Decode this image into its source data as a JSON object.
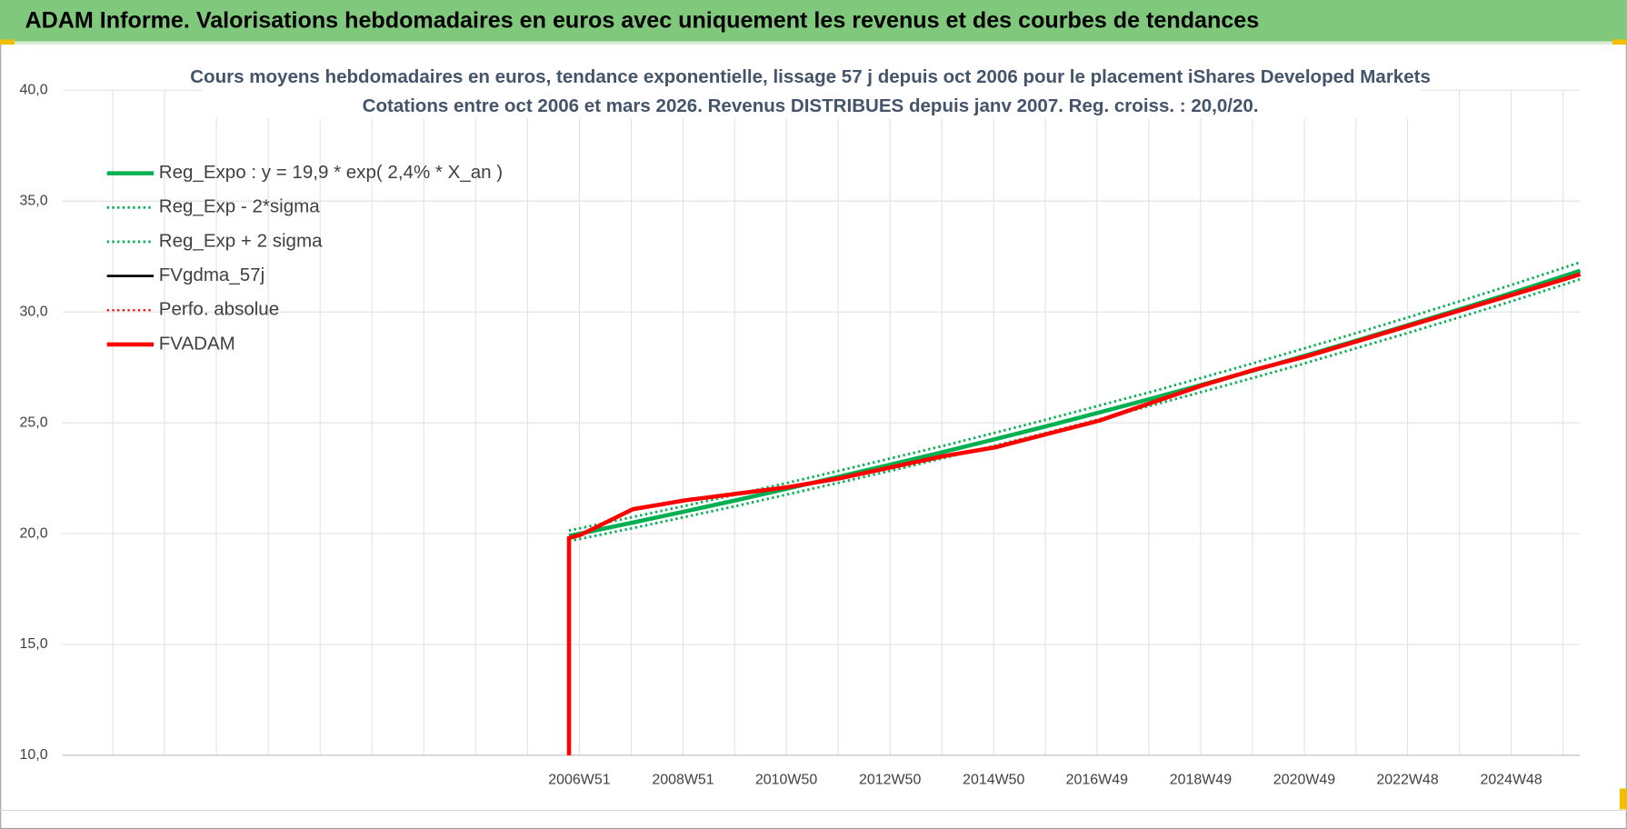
{
  "header": {
    "title": "ADAM Informe. Valorisations hebdomadaires en euros avec uniquement les revenus et des courbes de tendances"
  },
  "chart_data": {
    "type": "line",
    "title": "Cours moyens hebdomadaires en euros, tendance exponentielle, lissage 57 j depuis oct 2006 pour le placement iShares Developed Markets",
    "subtitle": "Cotations entre oct 2006 et mars 2026. Revenus DISTRIBUES depuis janv 2007. Reg. croiss. : 20,0/20.",
    "x": [
      2006.77,
      2006.77,
      2007,
      2008,
      2009,
      2010,
      2011,
      2012,
      2013,
      2014,
      2015,
      2016,
      2017,
      2018,
      2019,
      2020,
      2021,
      2022,
      2023,
      2024,
      2025,
      2026,
      2026.27
    ],
    "xlim": [
      1997,
      2026.27
    ],
    "xticks": [
      {
        "value": 2006.97,
        "label": "2006W51"
      },
      {
        "value": 2008.97,
        "label": "2008W51"
      },
      {
        "value": 2010.96,
        "label": "2010W50"
      },
      {
        "value": 2012.96,
        "label": "2012W50"
      },
      {
        "value": 2014.96,
        "label": "2014W50"
      },
      {
        "value": 2016.95,
        "label": "2016W49"
      },
      {
        "value": 2018.95,
        "label": "2018W49"
      },
      {
        "value": 2020.95,
        "label": "2020W49"
      },
      {
        "value": 2022.94,
        "label": "2022W48"
      },
      {
        "value": 2024.94,
        "label": "2024W48"
      }
    ],
    "ylim": [
      10,
      40
    ],
    "yticks": [
      {
        "value": 10,
        "label": "10,0"
      },
      {
        "value": 15,
        "label": "15,0"
      },
      {
        "value": 20,
        "label": "20,0"
      },
      {
        "value": 25,
        "label": "25,0"
      },
      {
        "value": 30,
        "label": "30,0"
      },
      {
        "value": 35,
        "label": "35,0"
      },
      {
        "value": 40,
        "label": "40,0"
      }
    ],
    "grid": true,
    "legend": "top-left",
    "series": [
      {
        "name": "Reg_Expo : y = 19,9 * exp( 2,4% *  X_an )",
        "color": "#00b050",
        "style": "solid",
        "width": 4,
        "values": [
          null,
          19.9,
          20.01,
          20.5,
          21.0,
          21.51,
          22.04,
          22.58,
          23.13,
          23.69,
          24.27,
          24.86,
          25.47,
          26.09,
          26.73,
          27.38,
          28.05,
          28.74,
          29.44,
          30.16,
          30.89,
          31.65,
          31.86
        ]
      },
      {
        "name": "Reg_Exp - 2*sigma",
        "color": "#00b050",
        "style": "dotted",
        "width": 2.5,
        "values": [
          null,
          19.66,
          19.77,
          20.25,
          20.75,
          21.25,
          21.78,
          22.31,
          22.85,
          23.41,
          23.98,
          24.56,
          25.16,
          25.78,
          26.41,
          27.05,
          27.71,
          28.4,
          29.09,
          29.8,
          30.52,
          31.27,
          31.48
        ]
      },
      {
        "name": "Reg_Exp + 2 sigma",
        "color": "#00b050",
        "style": "dotted",
        "width": 2.5,
        "values": [
          null,
          20.14,
          20.25,
          20.75,
          21.25,
          21.77,
          22.3,
          22.85,
          23.41,
          23.97,
          24.56,
          25.16,
          25.78,
          26.4,
          27.05,
          27.71,
          28.39,
          29.08,
          29.79,
          30.52,
          31.26,
          32.03,
          32.24
        ]
      },
      {
        "name": "FVgdma_57j",
        "color": "#000000",
        "style": "solid",
        "width": 2.5,
        "values": [
          10,
          19.8,
          19.95,
          21.1,
          21.5,
          21.8,
          22.1,
          22.5,
          23.0,
          23.5,
          23.9,
          24.5,
          25.1,
          25.9,
          26.7,
          27.4,
          28.0,
          28.7,
          29.4,
          30.1,
          30.8,
          31.5,
          31.7
        ]
      },
      {
        "name": "Perfo. absolue",
        "color": "#ff0000",
        "style": "dotted",
        "width": 2,
        "values": [
          10,
          19.8,
          19.95,
          21.1,
          21.5,
          21.8,
          22.1,
          22.5,
          23.0,
          23.5,
          23.9,
          24.5,
          25.1,
          25.9,
          26.7,
          27.4,
          28.0,
          28.7,
          29.4,
          30.1,
          30.8,
          31.5,
          31.7
        ]
      },
      {
        "name": "FVADAM",
        "color": "#ff0000",
        "style": "solid",
        "width": 4,
        "values": [
          10,
          19.8,
          19.95,
          21.1,
          21.5,
          21.8,
          22.1,
          22.5,
          23.0,
          23.5,
          23.9,
          24.5,
          25.1,
          25.9,
          26.7,
          27.4,
          28.0,
          28.7,
          29.4,
          30.1,
          30.8,
          31.5,
          31.7
        ]
      }
    ]
  }
}
